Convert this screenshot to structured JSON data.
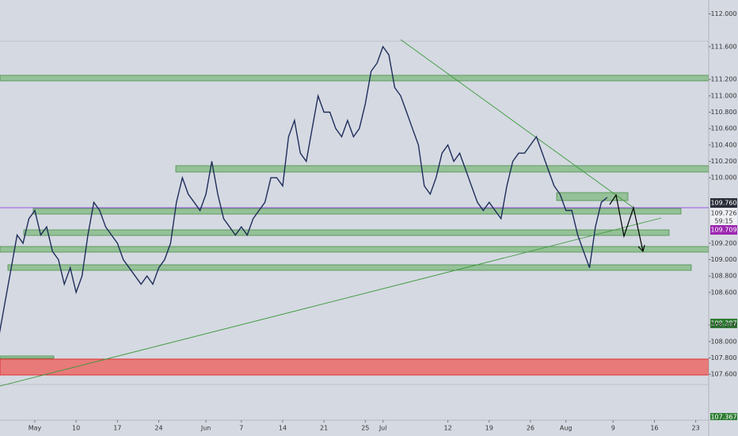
{
  "chart_data": {
    "type": "line",
    "color": "#1e2d5a",
    "x": [
      -6,
      -5,
      -4,
      -3,
      -2,
      -1,
      0,
      1,
      2,
      3,
      4,
      5,
      6,
      7,
      8,
      9,
      10,
      11,
      12,
      13,
      14,
      15,
      16,
      17,
      18,
      19,
      20,
      21,
      22,
      23,
      24,
      25,
      26,
      27,
      28,
      29,
      30,
      31,
      32,
      33,
      34,
      35,
      36,
      37,
      38,
      39,
      40,
      41,
      42,
      43,
      44,
      45,
      46,
      47,
      48,
      49,
      50,
      51,
      52,
      53,
      54,
      55,
      56,
      57,
      58,
      59,
      60,
      61,
      62,
      63,
      64,
      65,
      66,
      67,
      68,
      69,
      70,
      71,
      72,
      73,
      74,
      75,
      76,
      77,
      78,
      79,
      80,
      81,
      82,
      83,
      84,
      85,
      86,
      87,
      88,
      89,
      90,
      91,
      92,
      93,
      94,
      95,
      96,
      97
    ],
    "values": [
      108.1,
      108.5,
      108.9,
      109.3,
      109.2,
      109.5,
      109.6,
      109.3,
      109.4,
      109.1,
      109.0,
      108.7,
      108.9,
      108.6,
      108.8,
      109.3,
      109.7,
      109.6,
      109.4,
      109.3,
      109.2,
      109.0,
      108.9,
      108.8,
      108.7,
      108.8,
      108.7,
      108.9,
      109.0,
      109.2,
      109.7,
      110.0,
      109.8,
      109.7,
      109.6,
      109.8,
      110.2,
      109.8,
      109.5,
      109.4,
      109.3,
      109.4,
      109.3,
      109.5,
      109.6,
      109.7,
      110.0,
      110.0,
      109.9,
      110.5,
      110.7,
      110.3,
      110.2,
      110.6,
      111.0,
      110.8,
      110.8,
      110.6,
      110.5,
      110.7,
      110.5,
      110.6,
      110.9,
      111.3,
      111.4,
      111.6,
      111.5,
      111.1,
      111.0,
      110.8,
      110.6,
      110.4,
      109.9,
      109.8,
      110.0,
      110.3,
      110.4,
      110.2,
      110.3,
      110.1,
      109.9,
      109.7,
      109.6,
      109.7,
      109.6,
      109.5,
      109.9,
      110.2,
      110.3,
      110.3,
      110.4,
      110.5,
      110.3,
      110.1,
      109.9,
      109.8,
      109.6,
      109.6,
      109.3,
      109.1,
      108.9,
      109.4,
      109.7,
      109.76
    ],
    "xlim": [
      -5.9,
      114.2
    ],
    "xticks": [
      {
        "value": 0,
        "label": "May"
      },
      {
        "value": 7,
        "label": "10"
      },
      {
        "value": 14,
        "label": "17"
      },
      {
        "value": 21,
        "label": "24"
      },
      {
        "value": 29,
        "label": "Jun"
      },
      {
        "value": 35,
        "label": "7"
      },
      {
        "value": 42,
        "label": "14"
      },
      {
        "value": 49,
        "label": "21"
      },
      {
        "value": 56,
        "label": "25"
      },
      {
        "value": 59,
        "label": "Jul"
      },
      {
        "value": 70,
        "label": "12"
      },
      {
        "value": 77,
        "label": "19"
      },
      {
        "value": 84,
        "label": "26"
      },
      {
        "value": 90,
        "label": "Aug"
      },
      {
        "value": 98,
        "label": "9"
      },
      {
        "value": 105,
        "label": "16"
      },
      {
        "value": 112,
        "label": "23"
      }
    ],
    "ylim": [
      107.04,
      112.17
    ],
    "yticks": [
      {
        "value": 112,
        "label": "112.000"
      },
      {
        "value": 111.6,
        "label": "111.600"
      },
      {
        "value": 111.2,
        "label": "111.200"
      },
      {
        "value": 111,
        "label": "111.000"
      },
      {
        "value": 110.8,
        "label": "110.800"
      },
      {
        "value": 110.6,
        "label": "110.600"
      },
      {
        "value": 110.4,
        "label": "110.400"
      },
      {
        "value": 110.2,
        "label": "110.200"
      },
      {
        "value": 110,
        "label": "110.000"
      },
      {
        "value": 109.2,
        "label": "109.200"
      },
      {
        "value": 109,
        "label": "109.000"
      },
      {
        "value": 108.8,
        "label": "108.800"
      },
      {
        "value": 108.6,
        "label": "108.600"
      },
      {
        "value": 108.2,
        "label": "108.200"
      },
      {
        "value": 108,
        "label": "108.000"
      },
      {
        "value": 107.8,
        "label": "107.800"
      },
      {
        "value": 107.6,
        "label": "107.600"
      }
    ],
    "price_tags": [
      "109.760",
      "109.726",
      "59:15",
      "109.709",
      "108.387",
      "107.367"
    ]
  }
}
